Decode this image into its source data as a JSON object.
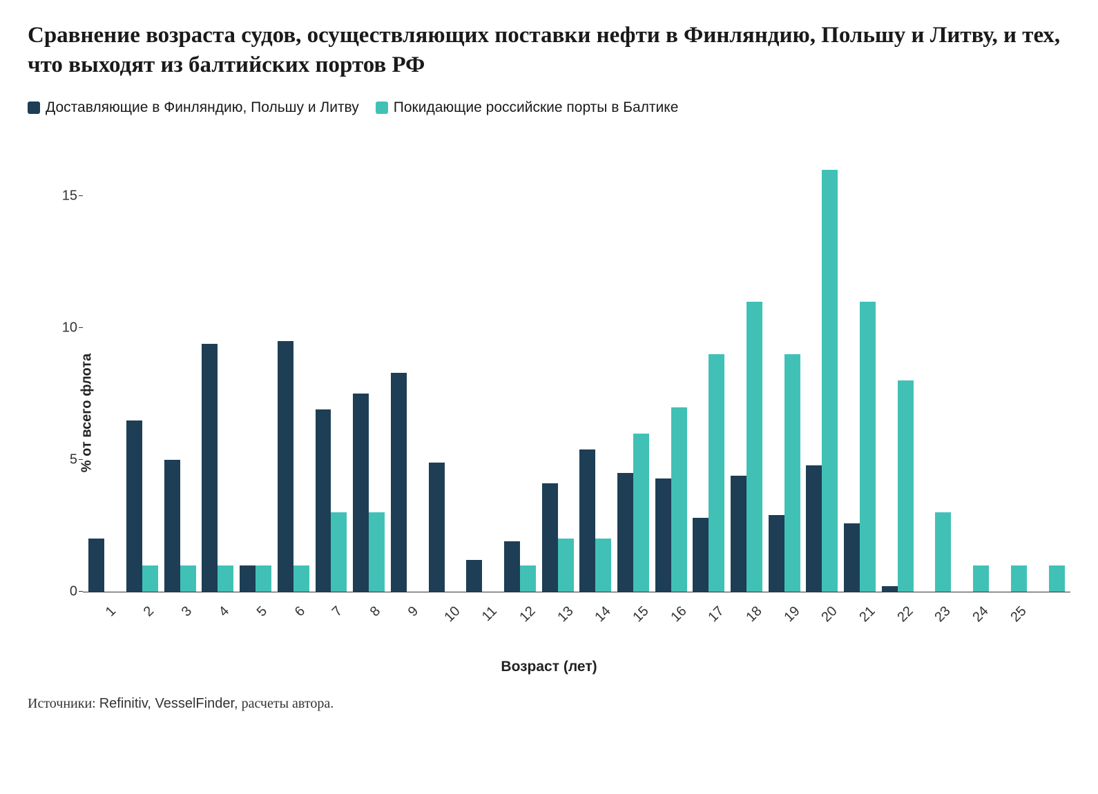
{
  "title": "Сравнение возраста судов, осуществляющих поставки нефти в Финляндию, Польшу и Литву, и тех, что выходят из балтийских портов РФ",
  "legend": {
    "series1_label": "Доставляющие в Финляндию, Польшу и Литву",
    "series2_label": "Покидающие российские порты в Балтике"
  },
  "chart": {
    "type": "grouped-bar",
    "ylabel": "% от всего флота",
    "xlabel": "Возраст (лет)",
    "ylim_max": 17,
    "yticks": [
      0,
      5,
      10,
      15
    ],
    "categories": [
      "1",
      "2",
      "3",
      "4",
      "5",
      "6",
      "7",
      "8",
      "9",
      "10",
      "11",
      "12",
      "13",
      "14",
      "15",
      "16",
      "17",
      "18",
      "19",
      "20",
      "21",
      "22",
      "23",
      "24",
      "25",
      ""
    ],
    "series1_color": "#1d3e55",
    "series2_color": "#41c1b6",
    "series1_values": [
      2.0,
      6.5,
      5.0,
      9.4,
      1.0,
      9.5,
      6.9,
      7.5,
      8.3,
      4.9,
      1.2,
      1.9,
      4.1,
      5.4,
      4.5,
      4.3,
      2.8,
      4.4,
      2.9,
      4.8,
      2.6,
      0.2,
      0,
      0,
      0,
      0
    ],
    "series2_values": [
      0,
      1.0,
      1.0,
      1.0,
      1.0,
      1.0,
      3.0,
      3.0,
      0,
      0,
      0,
      1.0,
      2.0,
      2.0,
      6.0,
      7.0,
      9.0,
      11.0,
      9.0,
      16.0,
      11.0,
      8.0,
      3.0,
      1.0,
      1.0,
      1.0
    ],
    "background_color": "#ffffff",
    "axis_color": "#333333",
    "tick_fontsize": 20,
    "label_fontsize": 21,
    "title_fontsize": 33
  },
  "footnote": {
    "prefix": "Источники:",
    "sources": "Refinitiv, VesselFinder,",
    "suffix": "расчеты автора."
  }
}
